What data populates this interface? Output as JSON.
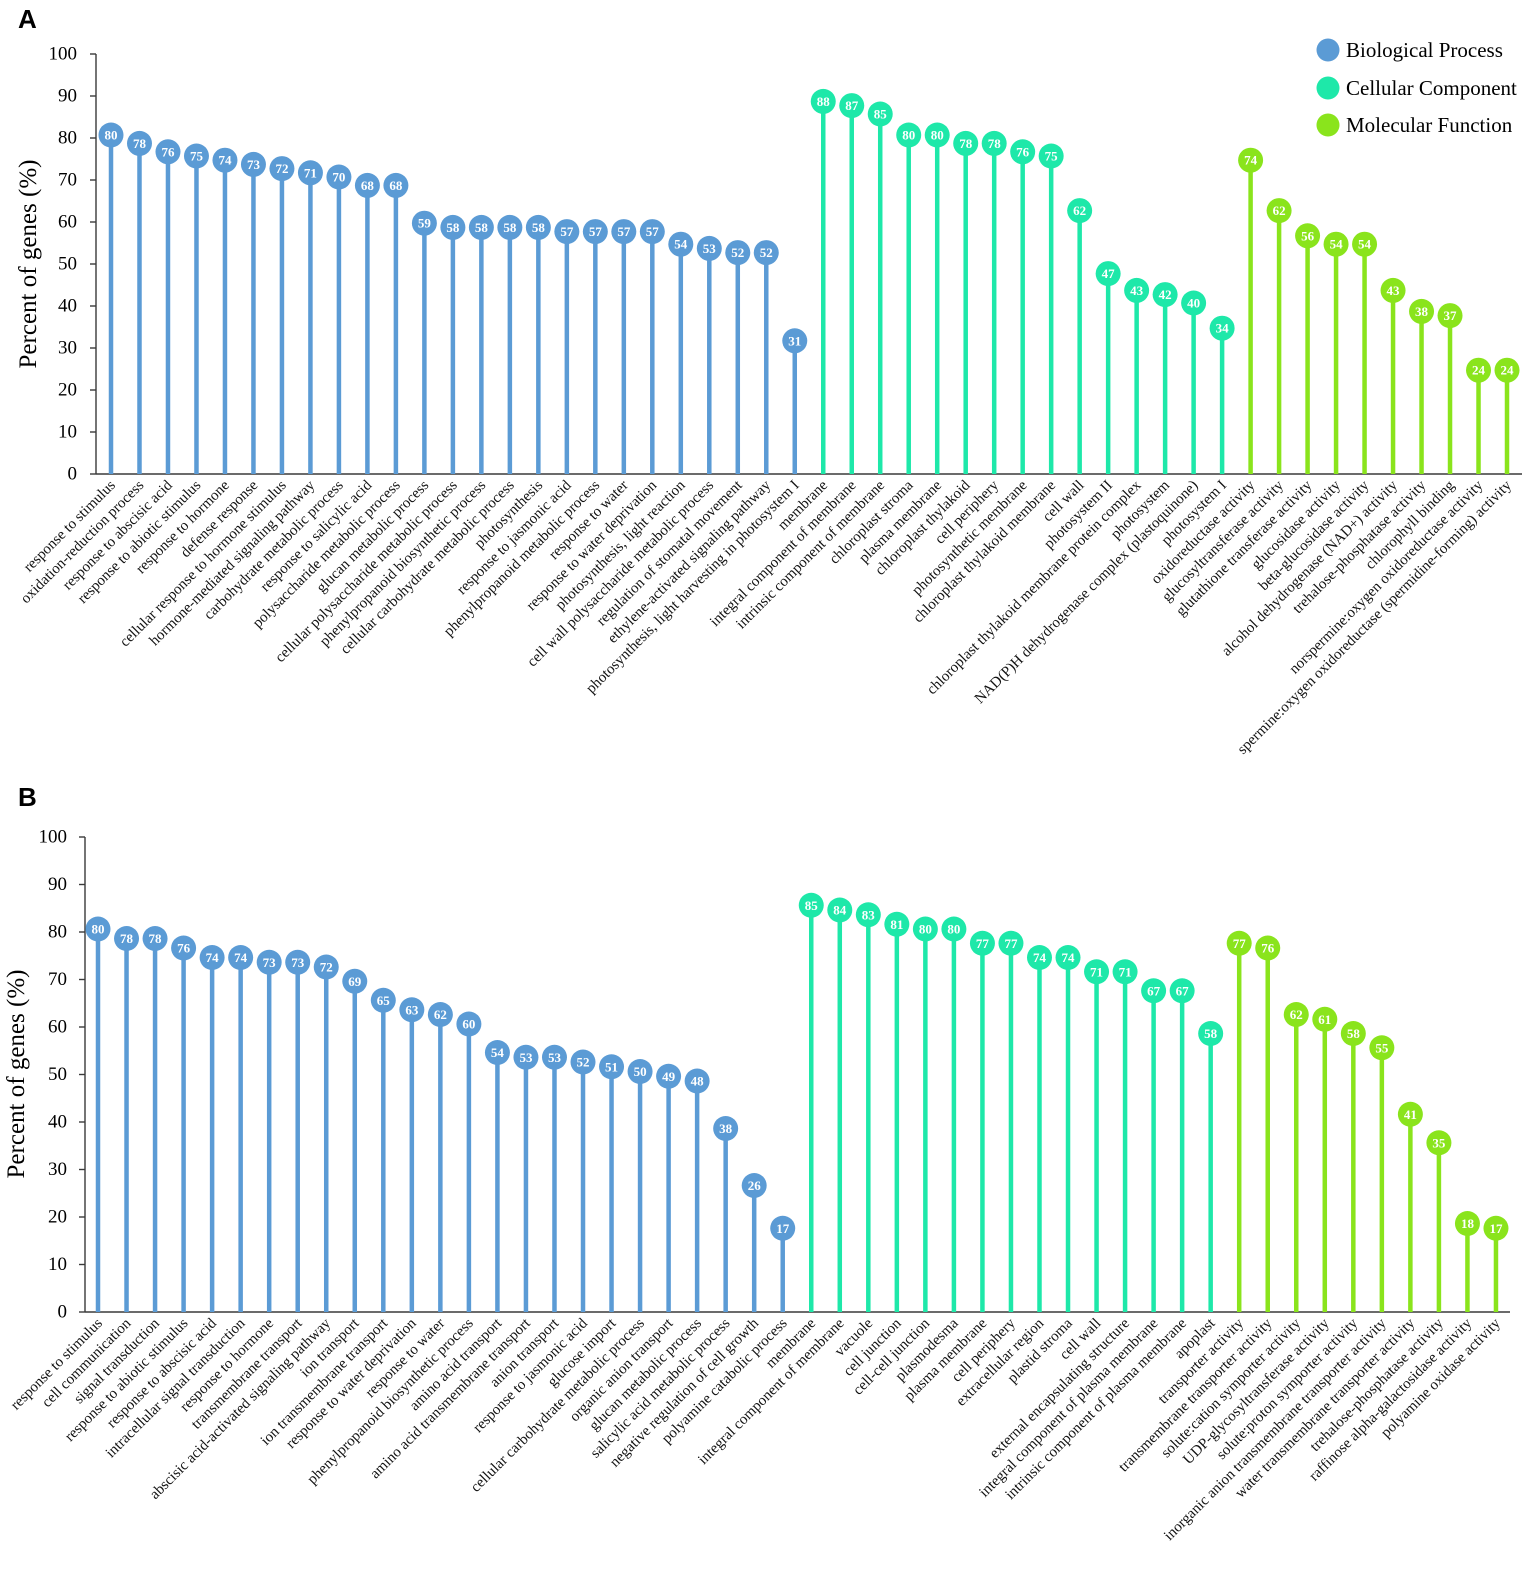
{
  "chart_data": [
    {
      "panel": "A",
      "type": "bar",
      "ylabel": "Percent of genes (%)",
      "ylim": [
        0,
        100
      ],
      "yticks": [
        0,
        10,
        20,
        30,
        40,
        50,
        60,
        70,
        80,
        90,
        100
      ],
      "legend_position": "top-right",
      "series": [
        {
          "name": "Biological Process",
          "color": "#5b9bd5",
          "categories": [
            "response to stimulus",
            "oxidation-reduction process",
            "response to abscisic acid",
            "response to abiotic stimulus",
            "response to hormone",
            "defense response",
            "cellular response to hormone stimulus",
            "hormone-mediated signaling pathway",
            "carbohydrate metabolic process",
            "response to salicylic acid",
            "polysaccharide metabolic process",
            "glucan metabolic process",
            "cellular polysaccharide metabolic process",
            "phenylpropanoid biosynthetic process",
            "cellular carbohydrate metabolic process",
            "photosynthesis",
            "response to jasmonic acid",
            "phenylpropanoid metabolic process",
            "response to water",
            "response to water deprivation",
            "photosynthesis, light reaction",
            "cell wall polysaccharide metabolic process",
            "regulation of stomatal movement",
            "ethylene-activated signaling pathway",
            "photosynthesis, light harvesting in photosystem I"
          ],
          "values": [
            80,
            78,
            76,
            75,
            74,
            73,
            72,
            71,
            70,
            68,
            68,
            59,
            58,
            58,
            58,
            58,
            57,
            57,
            57,
            57,
            54,
            53,
            52,
            52,
            31
          ]
        },
        {
          "name": "Cellular Component",
          "color": "#1ee8a9",
          "categories": [
            "membrane",
            "integral component of membrane",
            "intrinsic component of membrane",
            "chloroplast stroma",
            "plasma membrane",
            "chloroplast thylakoid",
            "cell periphery",
            "photosynthetic membrane",
            "chloroplast thylakoid membrane",
            "cell wall",
            "photosystem II",
            "chloroplast thylakoid membrane protein complex",
            "photosystem",
            "NAD(P)H dehydrogenase complex (plastoquinone)",
            "photosystem I"
          ],
          "values": [
            88,
            87,
            85,
            80,
            80,
            78,
            78,
            76,
            75,
            62,
            47,
            43,
            42,
            40,
            34
          ]
        },
        {
          "name": "Molecular Function",
          "color": "#8ae41c",
          "categories": [
            "oxidoreductase activity",
            "glucosyltransferase activity",
            "glutathione transferase activity",
            "glucosidase activity",
            "beta-glucosidase activity",
            "alcohol dehydrogenase (NAD+) activity",
            "trehalose-phosphatase activity",
            "chlorophyll binding",
            "norspermine:oxygen oxidoreductase activity",
            "spermine:oxygen oxidoreductase (spermidine-forming) activity"
          ],
          "values": [
            74,
            62,
            56,
            54,
            54,
            43,
            38,
            37,
            24,
            24
          ]
        }
      ]
    },
    {
      "panel": "B",
      "type": "bar",
      "ylabel": "Percent of genes (%)",
      "ylim": [
        0,
        100
      ],
      "yticks": [
        0,
        10,
        20,
        30,
        40,
        50,
        60,
        70,
        80,
        90,
        100
      ],
      "series": [
        {
          "color": "#5b9bd5",
          "categories": [
            "response to stimulus",
            "cell communication",
            "signal transduction",
            "response to abiotic stimulus",
            "response to abscisic acid",
            "intracellular signal transduction",
            "response to hormone",
            "transmembrane transport",
            "abscisic acid-activated signaling pathway",
            "ion transport",
            "ion transmembrane transport",
            "response to water deprivation",
            "response to water",
            "phenylpropanoid biosynthetic process",
            "amino acid transport",
            "amino acid transmembrane transport",
            "anion transport",
            "response to jasmonic acid",
            "glucose import",
            "cellular carbohydrate metabolic process",
            "organic anion transport",
            "glucan metabolic process",
            "salicylic acid metabolic process",
            "negative regulation of cell growth",
            "polyamine catabolic process"
          ],
          "values": [
            80,
            78,
            78,
            76,
            74,
            74,
            73,
            73,
            72,
            69,
            65,
            63,
            62,
            60,
            54,
            53,
            53,
            52,
            51,
            50,
            49,
            48,
            38,
            26,
            17
          ]
        },
        {
          "color": "#1ee8a9",
          "categories": [
            "membrane",
            "integral component of membrane",
            "vacuole",
            "cell junction",
            "cell-cell junction",
            "plasmodesma",
            "plasma membrane",
            "cell periphery",
            "extracellular region",
            "plastid stroma",
            "cell wall",
            "external encapsulating structure",
            "integral component of plasma membrane",
            "intrinsic component of plasma membrane",
            "apoplast"
          ],
          "values": [
            85,
            84,
            83,
            81,
            80,
            80,
            77,
            77,
            74,
            74,
            71,
            71,
            67,
            67,
            58
          ]
        },
        {
          "color": "#8ae41c",
          "categories": [
            "transporter activity",
            "transmembrane transporter activity",
            "solute:cation symporter activity",
            "UDP-glycosyltransferase activity",
            "solute:proton symporter activity",
            "inorganic anion transmembrane transporter activity",
            "water transmembrane transporter activity",
            "trehalose-phosphatase activity",
            "raffinose alpha-galactosidase activity",
            "polyamine oxidase activity"
          ],
          "values": [
            77,
            76,
            62,
            61,
            58,
            55,
            41,
            35,
            18,
            17
          ]
        }
      ]
    }
  ]
}
